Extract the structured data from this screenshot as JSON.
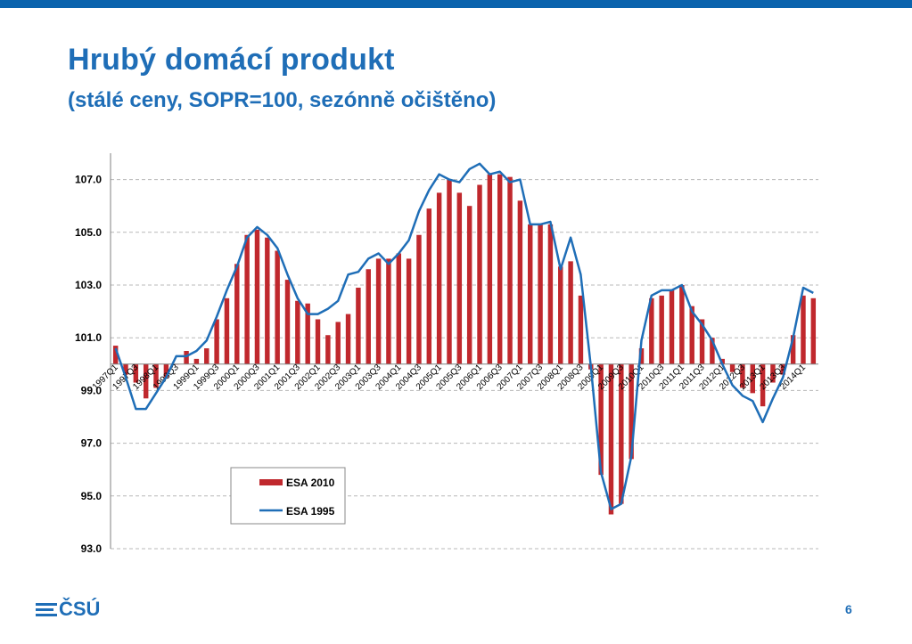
{
  "header": {
    "title": "Hrubý domácí produkt",
    "subtitle": "(stálé ceny, SOPR=100, sezónně očištěno)"
  },
  "footer": {
    "logo_text": "ČSÚ",
    "page_number": "6"
  },
  "colors": {
    "brand_blue": "#1f6eb7",
    "bar_red": "#c0282d",
    "line_blue": "#1f6eb7",
    "top_bar": "#0a63ad"
  },
  "chart_data": {
    "type": "bar",
    "title": "",
    "xlabel": "",
    "ylabel": "",
    "ylim": [
      93.0,
      108.0
    ],
    "y_ticks": [
      "93.0",
      "95.0",
      "97.0",
      "99.0",
      "101.0",
      "103.0",
      "105.0",
      "107.0"
    ],
    "y_tick_values": [
      93,
      95,
      97,
      99,
      101,
      103,
      105,
      107
    ],
    "baseline": 100,
    "grid": "horizontal dashed",
    "legend": {
      "position": "bottom-left",
      "entries": [
        "ESA 2010",
        "ESA 1995"
      ]
    },
    "categories": [
      "1997Q1",
      "1997Q2",
      "1997Q3",
      "1997Q4",
      "1998Q1",
      "1998Q2",
      "1998Q3",
      "1998Q4",
      "1999Q1",
      "1999Q2",
      "1999Q3",
      "1999Q4",
      "2000Q1",
      "2000Q2",
      "2000Q3",
      "2000Q4",
      "2001Q1",
      "2001Q2",
      "2001Q3",
      "2001Q4",
      "2002Q1",
      "2002Q2",
      "2002Q3",
      "2002Q4",
      "2003Q1",
      "2003Q2",
      "2003Q3",
      "2003Q4",
      "2004Q1",
      "2004Q2",
      "2004Q3",
      "2004Q4",
      "2005Q1",
      "2005Q2",
      "2005Q3",
      "2005Q4",
      "2006Q1",
      "2006Q2",
      "2006Q3",
      "2006Q4",
      "2007Q1",
      "2007Q2",
      "2007Q3",
      "2007Q4",
      "2008Q1",
      "2008Q2",
      "2008Q3",
      "2008Q4",
      "2009Q1",
      "2009Q2",
      "2009Q3",
      "2009Q4",
      "2010Q1",
      "2010Q2",
      "2010Q3",
      "2010Q4",
      "2011Q1",
      "2011Q2",
      "2011Q3",
      "2011Q4",
      "2012Q1",
      "2012Q2",
      "2012Q3",
      "2012Q4",
      "2013Q1",
      "2013Q2",
      "2013Q3",
      "2013Q4",
      "2014Q1",
      "2014Q2"
    ],
    "x_tick_labels": [
      "1997Q1",
      "1997Q3",
      "1998Q1",
      "1998Q3",
      "1999Q1",
      "1999Q3",
      "2000Q1",
      "2000Q3",
      "2001Q1",
      "2001Q3",
      "2002Q1",
      "2002Q3",
      "2003Q1",
      "2003Q3",
      "2004Q1",
      "2004Q3",
      "2005Q1",
      "2005Q3",
      "2006Q1",
      "2006Q3",
      "2007Q1",
      "2007Q3",
      "2008Q1",
      "2008Q3",
      "2009Q1",
      "2009Q3",
      "2010Q1",
      "2010Q3",
      "2011Q1",
      "2011Q3",
      "2012Q1",
      "2012Q3",
      "2013Q1",
      "2013Q3",
      "2014Q1"
    ],
    "series": [
      {
        "name": "ESA 2010",
        "type": "bar",
        "color": "#c0282d",
        "values": [
          100.7,
          99.6,
          99.3,
          98.7,
          99.1,
          99.5,
          100.0,
          100.5,
          100.2,
          100.6,
          101.7,
          102.5,
          103.8,
          104.9,
          105.1,
          104.8,
          104.3,
          103.2,
          102.4,
          102.3,
          101.7,
          101.1,
          101.6,
          101.9,
          102.9,
          103.6,
          104.0,
          104.0,
          104.2,
          104.0,
          104.9,
          105.9,
          106.5,
          107.0,
          106.5,
          106.0,
          106.8,
          107.2,
          107.2,
          107.1,
          106.2,
          105.3,
          105.3,
          105.3,
          103.7,
          103.9,
          102.6,
          99.8,
          95.8,
          94.3,
          94.7,
          96.4,
          100.6,
          102.5,
          102.6,
          102.8,
          103.0,
          102.2,
          101.7,
          101.0,
          100.2,
          99.7,
          99.1,
          98.9,
          98.4,
          99.3,
          99.6,
          101.1,
          102.6,
          102.5
        ]
      },
      {
        "name": "ESA 1995",
        "type": "line",
        "color": "#1f6eb7",
        "values": [
          100.6,
          99.5,
          98.3,
          98.3,
          98.9,
          99.5,
          100.3,
          100.3,
          100.5,
          100.9,
          101.8,
          102.8,
          103.7,
          104.8,
          105.2,
          104.9,
          104.4,
          103.4,
          102.5,
          101.9,
          101.9,
          102.1,
          102.4,
          103.4,
          103.5,
          104.0,
          104.2,
          103.8,
          104.2,
          104.7,
          105.8,
          106.6,
          107.2,
          107.0,
          106.9,
          107.4,
          107.6,
          107.2,
          107.3,
          106.9,
          107.0,
          105.3,
          105.3,
          105.4,
          103.6,
          104.8,
          103.4,
          99.9,
          95.9,
          94.5,
          94.7,
          96.5,
          100.9,
          102.6,
          102.8,
          102.8,
          103.0,
          102.0,
          101.5,
          100.9,
          100.0,
          99.2,
          98.8,
          98.6,
          97.8,
          98.7,
          99.5,
          101.0,
          102.9,
          102.7
        ]
      }
    ]
  }
}
